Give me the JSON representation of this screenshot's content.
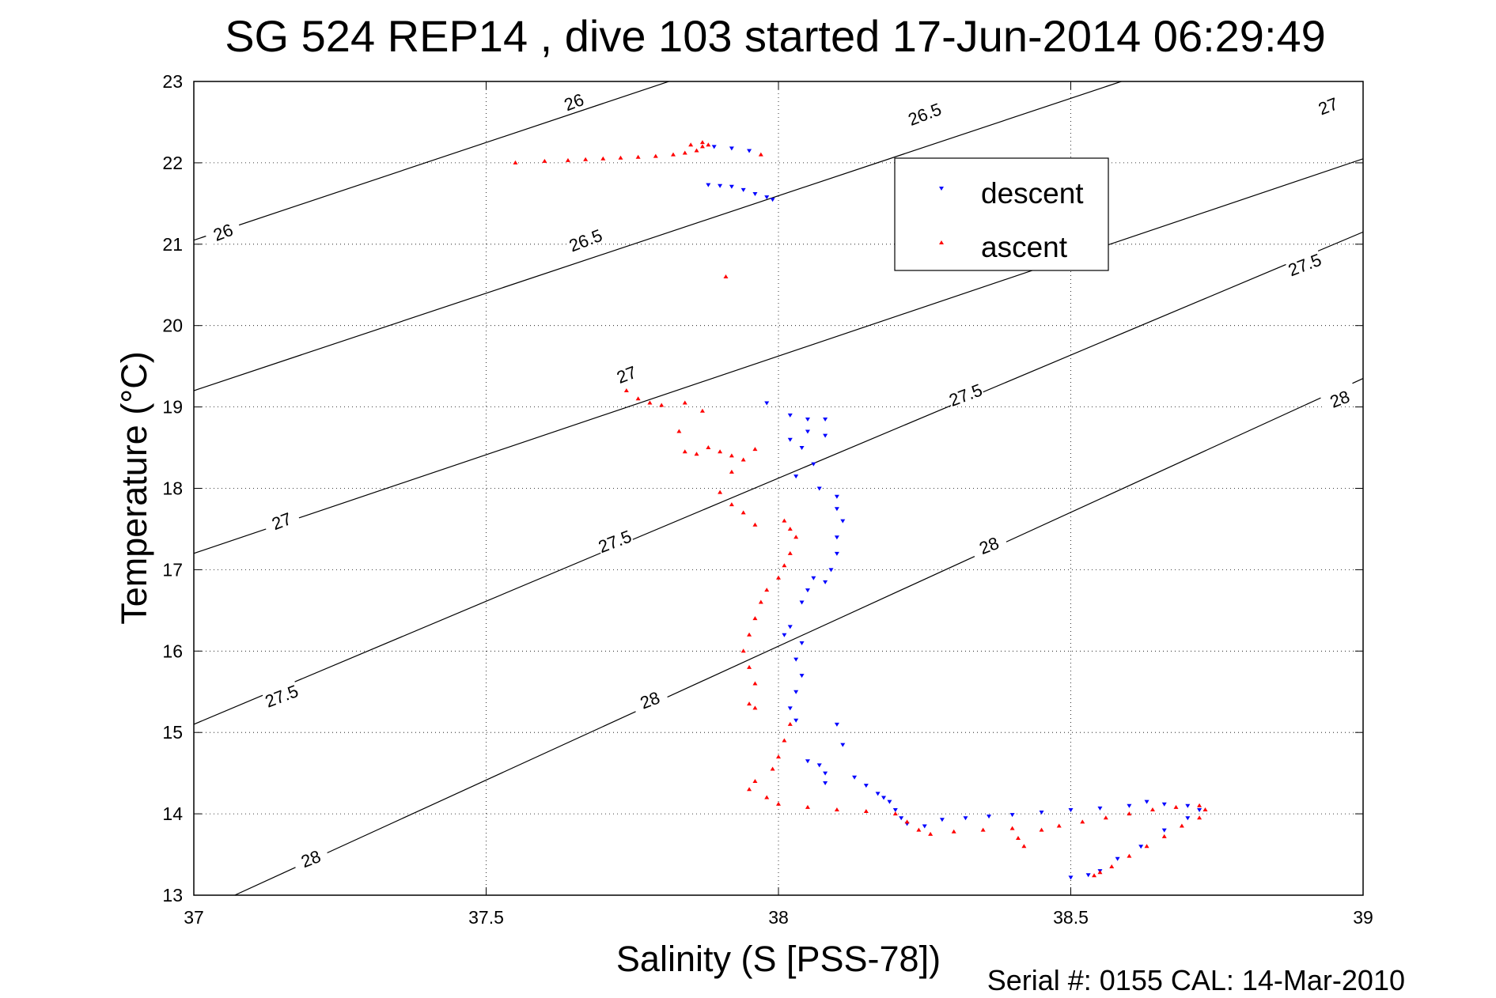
{
  "chart_data": {
    "type": "scatter",
    "title": "SG 524   REP14  , dive 103 started 17-Jun-2014 06:29:49",
    "xlabel": "Salinity (S [PSS-78])",
    "ylabel": "Temperature (°C)",
    "footer": "Serial #: 0155  CAL: 14-Mar-2010",
    "xlim": [
      37,
      39
    ],
    "ylim": [
      13,
      23
    ],
    "xticks": [
      "37",
      "37.5",
      "38",
      "38.5",
      "39"
    ],
    "yticks": [
      "13",
      "14",
      "15",
      "16",
      "17",
      "18",
      "19",
      "20",
      "21",
      "22",
      "23"
    ],
    "grid": true,
    "legend_position": "top-right",
    "density_contours": [
      {
        "label": "26",
        "points": [
          [
            37,
            21.05
          ],
          [
            39,
            25.85
          ]
        ]
      },
      {
        "label": "26.5",
        "points": [
          [
            37,
            19.2
          ],
          [
            39,
            23.99
          ]
        ]
      },
      {
        "label": "27",
        "points": [
          [
            37,
            17.2
          ],
          [
            39,
            22.05
          ]
        ]
      },
      {
        "label": "27.5",
        "points": [
          [
            37,
            15.1
          ],
          [
            39,
            21.15
          ]
        ]
      },
      {
        "label": "28",
        "points": [
          [
            37.07,
            13.0
          ],
          [
            39,
            19.35
          ]
        ]
      }
    ],
    "contour_labels": [
      {
        "text": "26",
        "x": 37.65,
        "y": 22.75
      },
      {
        "text": "26",
        "x": 37.05,
        "y": 21.15
      },
      {
        "text": "26.5",
        "x": 38.25,
        "y": 22.6
      },
      {
        "text": "26.5",
        "x": 37.67,
        "y": 21.05
      },
      {
        "text": "27",
        "x": 38.94,
        "y": 22.7
      },
      {
        "text": "27",
        "x": 37.74,
        "y": 19.4
      },
      {
        "text": "27",
        "x": 37.15,
        "y": 17.6
      },
      {
        "text": "27.5",
        "x": 38.9,
        "y": 20.75
      },
      {
        "text": "27.5",
        "x": 38.32,
        "y": 19.15
      },
      {
        "text": "27.5",
        "x": 37.72,
        "y": 17.35
      },
      {
        "text": "27.5",
        "x": 37.15,
        "y": 15.45
      },
      {
        "text": "28",
        "x": 38.96,
        "y": 19.1
      },
      {
        "text": "28",
        "x": 38.36,
        "y": 17.3
      },
      {
        "text": "28",
        "x": 37.78,
        "y": 15.4
      },
      {
        "text": "28",
        "x": 37.2,
        "y": 13.45
      }
    ],
    "series": [
      {
        "name": "descent",
        "color": "#0000ff",
        "marker": "triangle-down",
        "points": [
          [
            37.89,
            22.2
          ],
          [
            37.92,
            22.18
          ],
          [
            37.95,
            22.15
          ],
          [
            37.88,
            21.73
          ],
          [
            37.9,
            21.72
          ],
          [
            37.92,
            21.71
          ],
          [
            37.94,
            21.67
          ],
          [
            37.96,
            21.62
          ],
          [
            37.98,
            21.58
          ],
          [
            37.99,
            21.55
          ],
          [
            37.98,
            19.05
          ],
          [
            38.02,
            18.9
          ],
          [
            38.05,
            18.85
          ],
          [
            38.08,
            18.85
          ],
          [
            38.05,
            18.7
          ],
          [
            38.02,
            18.6
          ],
          [
            38.08,
            18.65
          ],
          [
            38.04,
            18.5
          ],
          [
            38.06,
            18.3
          ],
          [
            38.03,
            18.15
          ],
          [
            38.07,
            18.0
          ],
          [
            38.1,
            17.9
          ],
          [
            38.1,
            17.75
          ],
          [
            38.11,
            17.6
          ],
          [
            38.1,
            17.4
          ],
          [
            38.1,
            17.2
          ],
          [
            38.09,
            17.0
          ],
          [
            38.08,
            16.85
          ],
          [
            38.06,
            16.9
          ],
          [
            38.05,
            16.75
          ],
          [
            38.04,
            16.6
          ],
          [
            38.02,
            16.3
          ],
          [
            38.01,
            16.2
          ],
          [
            38.04,
            16.1
          ],
          [
            38.03,
            15.9
          ],
          [
            38.04,
            15.7
          ],
          [
            38.03,
            15.5
          ],
          [
            38.02,
            15.3
          ],
          [
            38.03,
            15.15
          ],
          [
            38.1,
            15.1
          ],
          [
            38.11,
            14.85
          ],
          [
            38.05,
            14.65
          ],
          [
            38.07,
            14.6
          ],
          [
            38.08,
            14.5
          ],
          [
            38.08,
            14.38
          ],
          [
            38.13,
            14.45
          ],
          [
            38.15,
            14.35
          ],
          [
            38.17,
            14.25
          ],
          [
            38.18,
            14.2
          ],
          [
            38.19,
            14.15
          ],
          [
            38.2,
            14.05
          ],
          [
            38.21,
            13.95
          ],
          [
            38.22,
            13.88
          ],
          [
            38.25,
            13.85
          ],
          [
            38.28,
            13.93
          ],
          [
            38.32,
            13.95
          ],
          [
            38.36,
            13.97
          ],
          [
            38.4,
            13.99
          ],
          [
            38.45,
            14.02
          ],
          [
            38.5,
            14.05
          ],
          [
            38.55,
            14.07
          ],
          [
            38.6,
            14.1
          ],
          [
            38.63,
            14.15
          ],
          [
            38.66,
            14.12
          ],
          [
            38.7,
            14.1
          ],
          [
            38.72,
            14.05
          ],
          [
            38.7,
            13.95
          ],
          [
            38.66,
            13.8
          ],
          [
            38.62,
            13.6
          ],
          [
            38.58,
            13.45
          ],
          [
            38.55,
            13.3
          ],
          [
            38.53,
            13.25
          ],
          [
            38.5,
            13.22
          ]
        ]
      },
      {
        "name": "ascent",
        "color": "#ff0000",
        "marker": "triangle-up",
        "points": [
          [
            37.55,
            22.0
          ],
          [
            37.6,
            22.02
          ],
          [
            37.64,
            22.03
          ],
          [
            37.67,
            22.04
          ],
          [
            37.7,
            22.05
          ],
          [
            37.73,
            22.06
          ],
          [
            37.76,
            22.07
          ],
          [
            37.79,
            22.08
          ],
          [
            37.82,
            22.1
          ],
          [
            37.84,
            22.12
          ],
          [
            37.86,
            22.15
          ],
          [
            37.87,
            22.2
          ],
          [
            37.88,
            22.22
          ],
          [
            37.87,
            22.25
          ],
          [
            37.85,
            22.22
          ],
          [
            37.97,
            22.1
          ],
          [
            37.91,
            20.6
          ],
          [
            37.74,
            19.2
          ],
          [
            37.76,
            19.1
          ],
          [
            37.78,
            19.05
          ],
          [
            37.8,
            19.02
          ],
          [
            37.84,
            19.05
          ],
          [
            37.87,
            18.95
          ],
          [
            37.83,
            18.7
          ],
          [
            37.84,
            18.45
          ],
          [
            37.86,
            18.42
          ],
          [
            37.88,
            18.5
          ],
          [
            37.9,
            18.45
          ],
          [
            37.92,
            18.4
          ],
          [
            37.94,
            18.35
          ],
          [
            37.96,
            18.48
          ],
          [
            37.92,
            18.2
          ],
          [
            37.9,
            17.95
          ],
          [
            37.92,
            17.8
          ],
          [
            37.94,
            17.7
          ],
          [
            37.96,
            17.55
          ],
          [
            38.01,
            17.6
          ],
          [
            38.02,
            17.5
          ],
          [
            38.03,
            17.4
          ],
          [
            38.02,
            17.2
          ],
          [
            38.01,
            17.05
          ],
          [
            38.0,
            16.9
          ],
          [
            37.98,
            16.75
          ],
          [
            37.97,
            16.6
          ],
          [
            37.96,
            16.4
          ],
          [
            37.95,
            16.2
          ],
          [
            37.94,
            16.0
          ],
          [
            37.95,
            15.8
          ],
          [
            37.96,
            15.6
          ],
          [
            37.95,
            15.35
          ],
          [
            37.96,
            15.3
          ],
          [
            38.02,
            15.1
          ],
          [
            38.01,
            14.9
          ],
          [
            38.0,
            14.7
          ],
          [
            37.99,
            14.55
          ],
          [
            37.96,
            14.4
          ],
          [
            37.95,
            14.3
          ],
          [
            37.98,
            14.2
          ],
          [
            38.0,
            14.12
          ],
          [
            38.05,
            14.08
          ],
          [
            38.1,
            14.05
          ],
          [
            38.15,
            14.03
          ],
          [
            38.2,
            14.0
          ],
          [
            38.22,
            13.9
          ],
          [
            38.24,
            13.8
          ],
          [
            38.26,
            13.75
          ],
          [
            38.3,
            13.78
          ],
          [
            38.35,
            13.8
          ],
          [
            38.4,
            13.82
          ],
          [
            38.41,
            13.7
          ],
          [
            38.42,
            13.6
          ],
          [
            38.45,
            13.8
          ],
          [
            38.48,
            13.85
          ],
          [
            38.52,
            13.9
          ],
          [
            38.56,
            13.95
          ],
          [
            38.6,
            14.0
          ],
          [
            38.64,
            14.05
          ],
          [
            38.68,
            14.08
          ],
          [
            38.72,
            14.1
          ],
          [
            38.73,
            14.05
          ],
          [
            38.72,
            13.95
          ],
          [
            38.69,
            13.85
          ],
          [
            38.66,
            13.72
          ],
          [
            38.63,
            13.6
          ],
          [
            38.6,
            13.48
          ],
          [
            38.57,
            13.35
          ],
          [
            38.55,
            13.28
          ],
          [
            38.54,
            13.24
          ]
        ]
      }
    ]
  }
}
